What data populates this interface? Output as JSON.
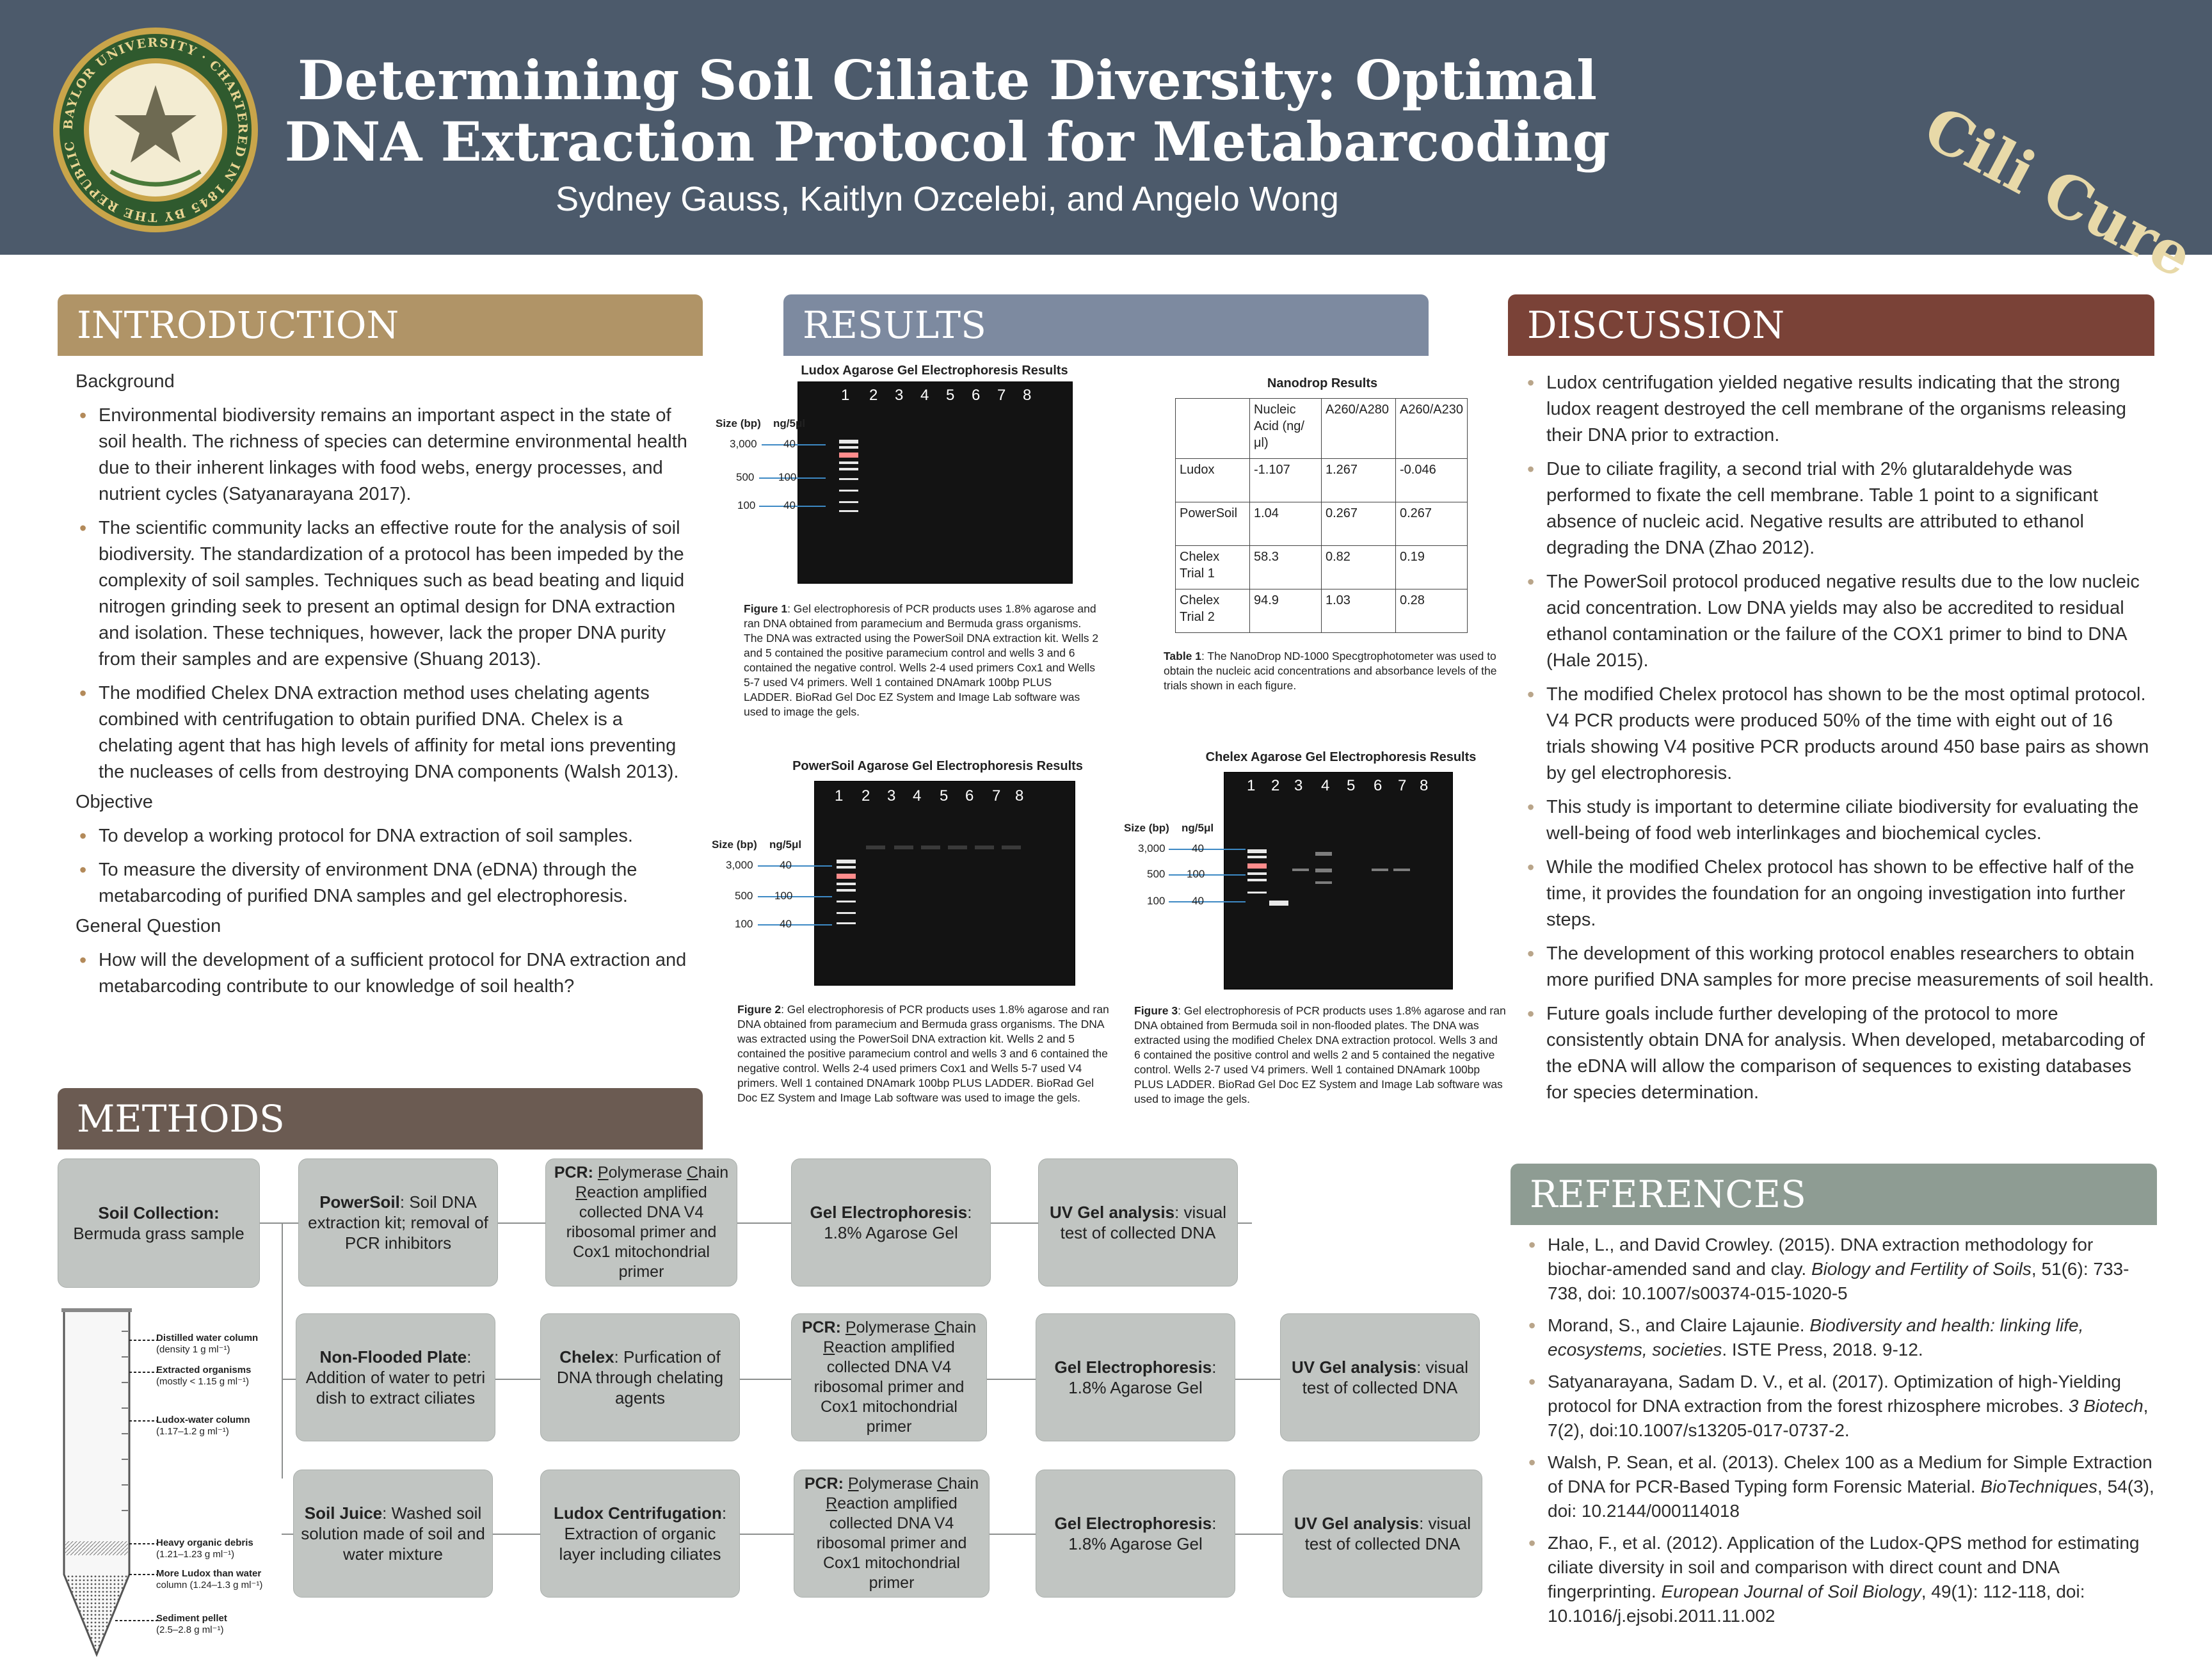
{
  "header": {
    "title": "Determining Soil Ciliate Diversity: Optimal DNA Extraction Protocol for Metabarcoding",
    "authors": "Sydney Gauss, Kaitlyn Ozcelebi, and Angelo Wong",
    "team_logo": "Cili Cure",
    "seal_icon": "baylor-university-seal-icon",
    "seal_text": "BAYLOR UNIVERSITY · CHARTERED IN 1845 BY THE REPUBLIC OF TEXAS · PRO ECCLESIA · PRO TEXANA"
  },
  "colors": {
    "header_bg": "#4c5a6b",
    "intro": "#b09467",
    "results": "#7d8aa0",
    "discussion": "#7a4237",
    "methods": "#6b5b52",
    "references": "#8e9c93",
    "method_box": "#c1c5c2"
  },
  "introduction": {
    "heading": "INTRODUCTION",
    "background_label": "Background",
    "background": [
      "Environmental biodiversity remains an important aspect in the state of soil health. The richness of species can determine environmental health due to their inherent linkages with food webs, energy processes, and nutrient cycles (Satyanarayana 2017).",
      "The scientific community lacks an effective route for the analysis of soil biodiversity. The standardization of a protocol has been impeded by the complexity of soil samples. Techniques such as bead beating and liquid nitrogen grinding seek to present an optimal design for DNA extraction and isolation. These techniques, however, lack the proper DNA purity from their samples and are expensive (Shuang 2013).",
      "The modified Chelex DNA extraction method uses chelating agents combined with centrifugation to obtain purified DNA. Chelex is a chelating agent that has high levels of affinity for metal ions preventing the nucleases of cells from destroying DNA components (Walsh 2013)."
    ],
    "objective_label": "Objective",
    "objective": [
      "To develop a working protocol for DNA extraction of soil samples.",
      "To measure the diversity of environment DNA (eDNA) through the metabarcoding of purified DNA samples and gel electrophoresis."
    ],
    "question_label": "General Question",
    "question": [
      "How will the development of a sufficient protocol for DNA extraction and metabarcoding contribute to our knowledge of soil health?"
    ]
  },
  "results": {
    "heading": "RESULTS",
    "size_bp_label": "Size (bp)",
    "ngul_label": "ng/5μl",
    "size_rows": [
      {
        "bp": "3,000",
        "ng": "40"
      },
      {
        "bp": "500",
        "ng": "100"
      },
      {
        "bp": "100",
        "ng": "40"
      }
    ],
    "lanes": [
      "1",
      "2",
      "3",
      "4",
      "5",
      "6",
      "7",
      "8"
    ],
    "ludox_title": "Ludox Agarose Gel Electrophoresis Results",
    "ludox_caption_label": "Figure 1",
    "ludox_caption": ": Gel electrophoresis of PCR products uses 1.8% agarose and ran DNA obtained from paramecium and Bermuda grass organisms. The DNA was extracted using the PowerSoil DNA extraction kit. Wells 2 and 5 contained the positive paramecium control and wells 3 and 6 contained the negative control. Wells 2-4 used primers Cox1 and Wells 5-7 used V4 primers. Well 1 contained DNAmark 100bp PLUS LADDER. BioRad Gel Doc EZ System and Image Lab software was used to image the gels.",
    "powersoil_title": "PowerSoil Agarose Gel Electrophoresis Results",
    "powersoil_caption_label": "Figure 2",
    "powersoil_caption": ": Gel electrophoresis of PCR products uses 1.8% agarose and ran DNA obtained from paramecium and Bermuda grass organisms. The DNA was extracted using the PowerSoil DNA extraction kit. Wells 2 and 5 contained the positive paramecium control and wells 3 and 6 contained the negative control. Wells 2-4 used primers Cox1 and Wells 5-7 used V4 primers. Well 1 contained DNAmark 100bp PLUS LADDER. BioRad Gel Doc EZ System and Image Lab software was used to image the gels.",
    "chelex_title": "Chelex Agarose Gel Electrophoresis Results",
    "chelex_caption_label": "Figure 3",
    "chelex_caption": ": Gel electrophoresis of PCR products uses 1.8% agarose and ran DNA obtained from Bermuda soil in non-flooded plates. The DNA was extracted using the modified Chelex DNA extraction protocol. Wells 3 and 6 contained the positive control and wells 2 and 5 contained the negative control. Wells 2-7 used V4 primers. Well 1 contained DNAmark 100bp PLUS LADDER. BioRad Gel Doc EZ System and Image Lab software was used to image the gels.",
    "nanodrop": {
      "title": "Nanodrop Results",
      "header": [
        "",
        "Nucleic Acid (ng/μl)",
        "A260/A280",
        "A260/A230"
      ],
      "rows": [
        [
          "Ludox",
          "-1.107",
          "1.267",
          "-0.046"
        ],
        [
          "PowerSoil",
          "1.04",
          "0.267",
          "0.267"
        ],
        [
          "Chelex Trial 1",
          "58.3",
          "0.82",
          "0.19"
        ],
        [
          "Chelex Trial 2",
          "94.9",
          "1.03",
          "0.28"
        ]
      ],
      "caption_label": "Table 1",
      "caption": ": The NanoDrop ND-1000 Specgtrophotometer was used to obtain the nucleic acid concentrations and absorbance levels of the trials shown in each figure."
    }
  },
  "discussion": {
    "heading": "DISCUSSION",
    "items": [
      "Ludox centrifugation yielded negative results indicating that the strong ludox reagent destroyed the cell membrane of the organisms releasing their DNA prior to extraction.",
      "Due to ciliate fragility, a second trial with 2% glutaraldehyde was performed to fixate the cell membrane. Table 1 point to a significant absence of nucleic acid. Negative results are attributed to ethanol degrading the DNA (Zhao 2012).",
      "The PowerSoil protocol produced negative results due to the low nucleic acid concentration. Low DNA yields may also be accredited to residual ethanol contamination or the failure of the COX1 primer to bind to DNA (Hale 2015).",
      "The modified Chelex protocol has shown to be the most optimal protocol. V4 PCR products were produced 50% of the time with eight out of 16 trials showing V4 positive PCR products around 450 base pairs as shown by gel electrophoresis.",
      "This study is important to determine ciliate biodiversity for evaluating the well-being of food web interlinkages and biochemical cycles.",
      "While the modified Chelex protocol has shown to be effective half of the time, it provides the foundation for an ongoing investigation into further steps.",
      "The development of this working protocol enables researchers to obtain more purified DNA samples for more precise measurements of soil health.",
      "Future goals include further developing of the protocol to more consistently obtain DNA for analysis. When developed, metabarcoding of the eDNA will allow the comparison of sequences to existing databases for species determination."
    ]
  },
  "methods": {
    "heading": "METHODS",
    "soil_collection_label": "Soil Collection:",
    "soil_collection_text": "Bermuda grass sample",
    "row1": [
      {
        "label": "PowerSoil",
        "text": ":  Soil DNA extraction kit; removal of PCR inhibitors"
      },
      {
        "pcr": true
      },
      {
        "label": "Gel Electrophoresis",
        "text": ": 1.8% Agarose Gel"
      },
      {
        "label": "UV Gel analysis",
        "text": ": visual test of collected DNA"
      }
    ],
    "row2": [
      {
        "label": "Non-Flooded Plate",
        "text": ": Addition of water to petri dish to extract ciliates"
      },
      {
        "label": "Chelex",
        "text": ": Purfication of DNA through chelating agents"
      },
      {
        "pcr": true
      },
      {
        "label": "Gel Electrophoresis",
        "text": ": 1.8% Agarose Gel"
      },
      {
        "label": "UV Gel analysis",
        "text": ": visual test of collected DNA"
      }
    ],
    "row3": [
      {
        "label": "Soil Juice",
        "text": ": Washed soil solution made of soil and water mixture"
      },
      {
        "label": "Ludox Centrifugation",
        "text": ": Extraction of organic layer  including ciliates"
      },
      {
        "pcr": true
      },
      {
        "label": "Gel Electrophoresis",
        "text": ": 1.8% Agarose Gel"
      },
      {
        "label": "UV Gel analysis",
        "text": ": visual test of collected DNA"
      }
    ],
    "pcr_label": "PCR:",
    "pcr_p": "P",
    "pcr_olymerase": "olymerase ",
    "pcr_c": "C",
    "pcr_hain": "hain",
    "pcr_r": "R",
    "pcr_rest": "eaction amplified collected DNA V4 ribosomal primer and Cox1 mitochondrial primer",
    "tube_icon": "centrifuge-tube-icon",
    "tube_labels": [
      {
        "title": "Distilled water column",
        "sub": "(density 1 g ml⁻¹)"
      },
      {
        "title": "Extracted organisms",
        "sub": "(mostly < 1.15 g ml⁻¹)"
      },
      {
        "title": "Ludox-water column",
        "sub": "(1.17–1.2 g ml⁻¹)"
      },
      {
        "title": "Heavy organic debris",
        "sub": "(1.21–1.23 g ml⁻¹)"
      },
      {
        "title": "More Ludox than water",
        "sub": "column (1.24–1.3 g ml⁻¹)"
      },
      {
        "title": "Sediment pellet",
        "sub": "(2.5–2.8 g ml⁻¹)"
      }
    ]
  },
  "references": {
    "heading": "REFERENCES",
    "items": [
      {
        "text": "Hale, L., and David Crowley. (2015). DNA extraction methodology for biochar-amended sand and clay. ",
        "journal": "Biology and Fertility of Soils",
        "rest": ", 51(6): 733-738, doi: 10.1007/s00374-015-1020-5"
      },
      {
        "text": "Morand, S., and Claire Lajaunie. ",
        "journal": "Biodiversity and health: linking life, ecosystems, societies",
        "rest": ". ISTE Press, 2018. 9-12."
      },
      {
        "text": "Satyanarayana, Sadam D. V., et al. (2017). Optimization of high-Yielding protocol for DNA extraction from the forest rhizosphere microbes. ",
        "journal": "3 Biotech",
        "rest": ", 7(2), doi:10.1007/s13205-017-0737-2."
      },
      {
        "text": "Walsh, P. Sean, et al. (2013). Chelex 100 as a Medium for Simple Extraction of DNA for PCR-Based Typing form Forensic Material. ",
        "journal": "BioTechniques",
        "rest": ", 54(3), doi: 10.2144/000114018"
      },
      {
        "text": "Zhao, F., et al. (2012). Application of the Ludox-QPS method for estimating ciliate diversity in soil and comparison with direct count and DNA fingerprinting. ",
        "journal": "European Journal of Soil Biology",
        "rest": ", 49(1): 112-118, doi: 10.1016/j.ejsobi.2011.11.002"
      }
    ]
  }
}
